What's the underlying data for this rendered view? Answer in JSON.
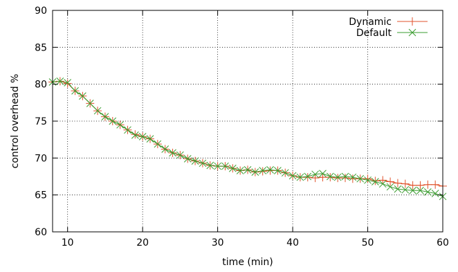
{
  "chart_data": {
    "type": "line",
    "title": "",
    "xlabel": "time (min)",
    "ylabel": "control overhead %",
    "xlim": [
      8,
      60
    ],
    "ylim": [
      60,
      90
    ],
    "xticks": [
      10,
      20,
      30,
      40,
      50,
      60
    ],
    "yticks": [
      60,
      65,
      70,
      75,
      80,
      85,
      90
    ],
    "grid": true,
    "legend_position": "top-right",
    "x": [
      8,
      9,
      10,
      11,
      12,
      13,
      14,
      15,
      16,
      17,
      18,
      19,
      20,
      21,
      22,
      23,
      24,
      25,
      26,
      27,
      28,
      29,
      30,
      31,
      32,
      33,
      34,
      35,
      36,
      37,
      38,
      39,
      40,
      41,
      42,
      43,
      44,
      45,
      46,
      47,
      48,
      49,
      50,
      51,
      52,
      53,
      54,
      55,
      56,
      57,
      58,
      59,
      60
    ],
    "series": [
      {
        "name": "Dynamic",
        "color": "#e0522b",
        "marker": "plus",
        "values": [
          80.3,
          80.4,
          80.1,
          79.1,
          78.4,
          77.4,
          76.4,
          75.6,
          75.0,
          74.5,
          73.8,
          73.2,
          72.9,
          72.6,
          71.9,
          71.2,
          70.7,
          70.4,
          69.9,
          69.6,
          69.3,
          69.0,
          68.9,
          68.9,
          68.6,
          68.3,
          68.4,
          68.1,
          68.2,
          68.3,
          68.3,
          68.0,
          67.6,
          67.4,
          67.4,
          67.3,
          67.4,
          67.4,
          67.3,
          67.3,
          67.2,
          67.2,
          67.2,
          66.9,
          67.0,
          66.8,
          66.6,
          66.5,
          66.3,
          66.3,
          66.4,
          66.4,
          66.2
        ]
      },
      {
        "name": "Default",
        "color": "#3a9c2f",
        "marker": "x",
        "values": [
          80.3,
          80.4,
          80.2,
          79.1,
          78.4,
          77.4,
          76.4,
          75.6,
          75.0,
          74.5,
          73.8,
          73.1,
          72.9,
          72.6,
          71.9,
          71.2,
          70.7,
          70.4,
          69.9,
          69.6,
          69.3,
          69.0,
          68.9,
          68.9,
          68.6,
          68.3,
          68.4,
          68.1,
          68.3,
          68.4,
          68.3,
          68.0,
          67.6,
          67.4,
          67.5,
          67.8,
          67.9,
          67.5,
          67.4,
          67.5,
          67.4,
          67.2,
          67.0,
          66.8,
          66.5,
          66.1,
          65.8,
          65.7,
          65.6,
          65.6,
          65.4,
          65.2,
          64.8
        ]
      }
    ]
  }
}
